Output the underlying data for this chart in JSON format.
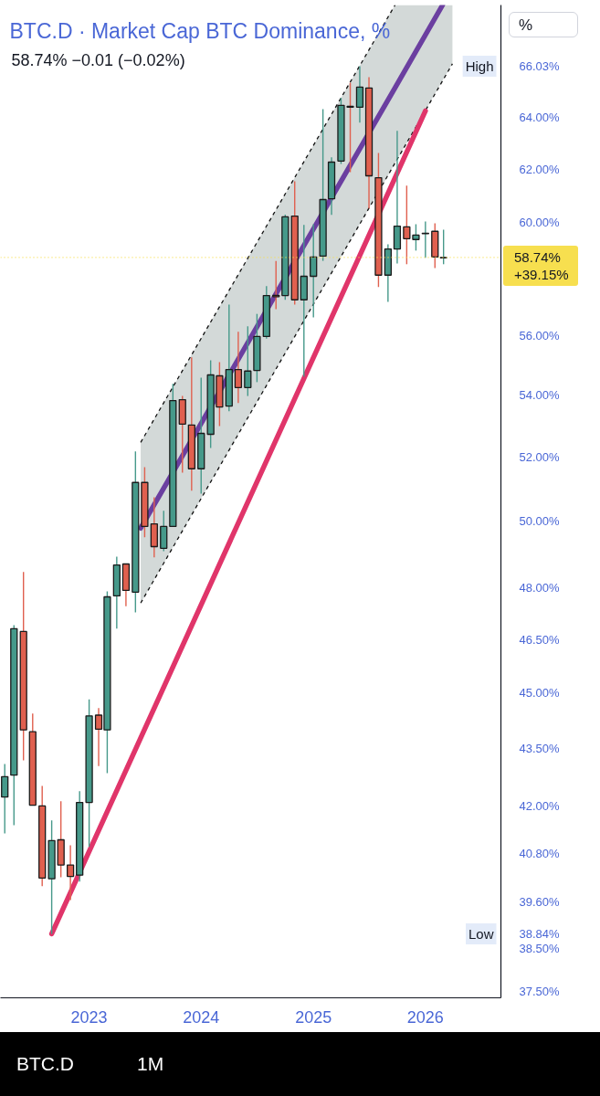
{
  "chart_data": {
    "type": "candlestick",
    "title": "BTC.D · Market Cap BTC Dominance, %",
    "subtitle": "58.74% −0.01 (−0.02%)",
    "ylabel": "%",
    "x": [
      "2022-04",
      "2022-05",
      "2022-06",
      "2022-07",
      "2022-08",
      "2022-09",
      "2022-10",
      "2022-11",
      "2022-12",
      "2023-01",
      "2023-02",
      "2023-03",
      "2023-04",
      "2023-05",
      "2023-06",
      "2023-07",
      "2023-08",
      "2023-09",
      "2023-10",
      "2023-11",
      "2023-12",
      "2024-01",
      "2024-02",
      "2024-03",
      "2024-04",
      "2024-05",
      "2024-06",
      "2024-07",
      "2024-08",
      "2024-09",
      "2024-10",
      "2024-11",
      "2024-12",
      "2025-01",
      "2025-02",
      "2025-03",
      "2025-04",
      "2025-05",
      "2025-06",
      "2025-07",
      "2025-08",
      "2025-09",
      "2025-10",
      "2025-11",
      "2025-12",
      "2026-01",
      "2026-02",
      "2026-03"
    ],
    "ohlc": [
      [
        42.23,
        43.09,
        41.3,
        42.76
      ],
      [
        42.8,
        46.91,
        41.51,
        46.81
      ],
      [
        46.73,
        48.46,
        43.19,
        44.0
      ],
      [
        43.95,
        44.44,
        42.02,
        42.02
      ],
      [
        42.0,
        42.52,
        39.99,
        40.19
      ],
      [
        40.17,
        41.63,
        38.84,
        41.12
      ],
      [
        41.14,
        42.12,
        40.21,
        40.51
      ],
      [
        40.51,
        41.0,
        39.65,
        40.23
      ],
      [
        40.26,
        42.38,
        40.1,
        42.09
      ],
      [
        42.09,
        44.83,
        40.96,
        44.38
      ],
      [
        44.4,
        44.59,
        43.04,
        44.02
      ],
      [
        44.0,
        47.89,
        42.85,
        47.73
      ],
      [
        47.76,
        48.92,
        46.81,
        48.67
      ],
      [
        48.7,
        48.7,
        47.46,
        47.92
      ],
      [
        47.87,
        52.17,
        47.28,
        51.19
      ],
      [
        51.19,
        51.67,
        49.5,
        49.83
      ],
      [
        49.91,
        50.73,
        48.9,
        49.22
      ],
      [
        49.17,
        50.31,
        49.08,
        49.83
      ],
      [
        49.83,
        54.37,
        49.83,
        53.82
      ],
      [
        53.85,
        53.97,
        51.5,
        53.05
      ],
      [
        53.02,
        55.26,
        50.93,
        51.62
      ],
      [
        51.62,
        54.58,
        50.84,
        52.75
      ],
      [
        52.72,
        55.16,
        52.28,
        54.67
      ],
      [
        54.64,
        55.1,
        52.99,
        53.61
      ],
      [
        53.64,
        57.07,
        53.47,
        54.85
      ],
      [
        54.85,
        56.13,
        53.74,
        54.25
      ],
      [
        54.25,
        56.32,
        53.97,
        54.8
      ],
      [
        54.82,
        56.75,
        54.43,
        55.97
      ],
      [
        55.97,
        57.72,
        55.9,
        57.39
      ],
      [
        57.4,
        58.62,
        56.91,
        57.35
      ],
      [
        57.39,
        60.3,
        57.24,
        60.22
      ],
      [
        60.25,
        61.54,
        57.07,
        57.24
      ],
      [
        57.24,
        59.92,
        54.61,
        58.07
      ],
      [
        58.07,
        59.95,
        56.63,
        58.76
      ],
      [
        58.79,
        64.32,
        58.62,
        60.86
      ],
      [
        60.89,
        62.45,
        60.29,
        62.27
      ],
      [
        62.31,
        64.76,
        62.2,
        64.47
      ],
      [
        64.43,
        65.37,
        61.89,
        64.4
      ],
      [
        64.4,
        66.03,
        63.79,
        65.19
      ],
      [
        65.16,
        65.59,
        60.53,
        61.75
      ],
      [
        61.68,
        62.62,
        57.69,
        58.11
      ],
      [
        58.11,
        59.22,
        57.17,
        59.05
      ],
      [
        59.05,
        63.47,
        58.53,
        59.88
      ],
      [
        59.85,
        61.38,
        58.5,
        59.42
      ],
      [
        59.39,
        59.95,
        58.99,
        59.55
      ],
      [
        59.6,
        60.05,
        58.73,
        59.62
      ],
      [
        59.69,
        59.98,
        58.36,
        58.76
      ],
      [
        58.73,
        59.75,
        58.5,
        58.74
      ]
    ],
    "colors": [
      "#46998a",
      "#46998a",
      "#e0604f",
      "#e0604f",
      "#e0604f",
      "#46998a",
      "#e0604f",
      "#e0604f",
      "#46998a",
      "#46998a",
      "#e0604f",
      "#46998a",
      "#46998a",
      "#e0604f",
      "#46998a",
      "#e0604f",
      "#e0604f",
      "#46998a",
      "#46998a",
      "#e0604f",
      "#e0604f",
      "#46998a",
      "#46998a",
      "#e0604f",
      "#46998a",
      "#e0604f",
      "#46998a",
      "#46998a",
      "#46998a",
      "#e0604f",
      "#46998a",
      "#e0604f",
      "#46998a",
      "#46998a",
      "#46998a",
      "#46998a",
      "#46998a",
      "#e0604f",
      "#46998a",
      "#e0604f",
      "#e0604f",
      "#46998a",
      "#46998a",
      "#e0604f",
      "#46998a",
      "#46998a",
      "#e0604f",
      "#46998a"
    ],
    "series": [
      {
        "type": "line",
        "color": "#6b3fa0",
        "x": [
          "2023-06-18",
          "2025-09-24",
          "2026-02-26",
          "2026-03-30"
        ],
        "values": [
          49.78,
          65.17,
          68.55,
          null
        ],
        "lower": [
          47.55,
          62.23,
          65.46,
          66.13
        ],
        "upper": [
          52.46,
          68.55,
          68.55,
          68.55
        ]
      },
      {
        "type": "line",
        "color": "#111111",
        "line_style": "dashed",
        "x": [
          "2023-06-18",
          "2025-09-24"
        ],
        "values": [
          52.46,
          68.55
        ]
      },
      {
        "type": "line",
        "color": "#111111",
        "line_style": "dashed",
        "x": [
          "2023-06-18",
          "2026-03-30"
        ],
        "values": [
          47.55,
          66.13
        ]
      },
      {
        "type": "line",
        "color": "#e0356a",
        "x": [
          "2022-09-01",
          "2026-01-01"
        ],
        "values": [
          38.84,
          64.25
        ]
      }
    ],
    "log": true,
    "xlim": [
      "2022-03-18",
      "2026-09-04"
    ],
    "xticks": [
      "2023",
      "2024",
      "2025",
      "2026"
    ],
    "ylim": [
      37.35,
      68.55
    ],
    "yticks": [
      {
        "value": 66.03,
        "label": "66.03%"
      },
      {
        "value": 64,
        "label": "64.00%"
      },
      {
        "value": 62,
        "label": "62.00%"
      },
      {
        "value": 60,
        "label": "60.00%"
      },
      {
        "value": 56,
        "label": "56.00%"
      },
      {
        "value": 54,
        "label": "54.00%"
      },
      {
        "value": 52,
        "label": "52.00%"
      },
      {
        "value": 50,
        "label": "50.00%"
      },
      {
        "value": 48,
        "label": "48.00%"
      },
      {
        "value": 46.5,
        "label": "46.50%"
      },
      {
        "value": 45,
        "label": "45.00%"
      },
      {
        "value": 43.5,
        "label": "43.50%"
      },
      {
        "value": 42,
        "label": "42.00%"
      },
      {
        "value": 40.8,
        "label": "40.80%"
      },
      {
        "value": 39.6,
        "label": "39.60%"
      },
      {
        "value": 38.84,
        "label": "38.84%"
      },
      {
        "value": 38.5,
        "label": "38.50%"
      },
      {
        "value": 37.5,
        "label": "37.50%"
      }
    ],
    "ref_lines": [
      {
        "axis": "y",
        "value": 58.74,
        "label": "58.74%\n+39.15%",
        "color": "#f7df4f",
        "line_style": "dotted"
      }
    ],
    "annotations": [
      {
        "text": "High",
        "y": 66.03
      },
      {
        "text": "Low",
        "y": 38.84
      },
      "BTC.D",
      "1M"
    ],
    "grid": false
  }
}
